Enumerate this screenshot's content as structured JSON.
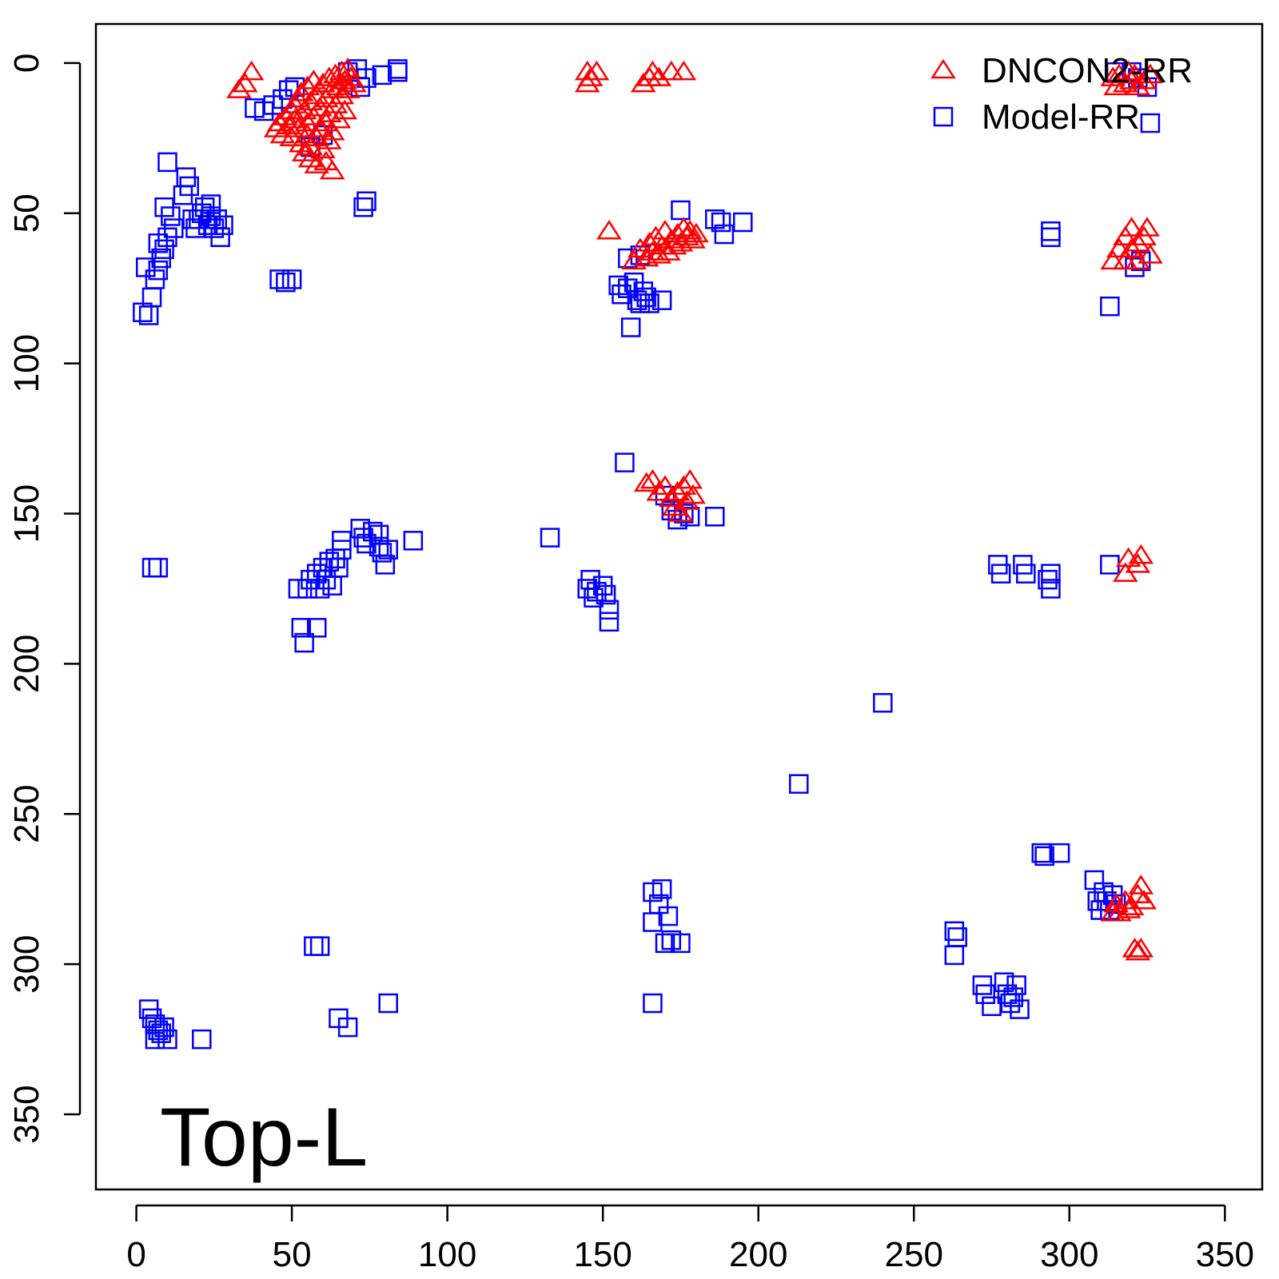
{
  "chart_data": {
    "type": "scatter",
    "title": "",
    "xlabel": "",
    "ylabel": "",
    "xlim": [
      -13,
      362
    ],
    "ylim": [
      -13,
      375
    ],
    "y_reversed": true,
    "x_ticks": [
      0,
      50,
      100,
      150,
      200,
      250,
      300,
      350
    ],
    "y_ticks": [
      0,
      50,
      100,
      150,
      200,
      250,
      300,
      350
    ],
    "x_tick_labels": [
      "0",
      "50",
      "100",
      "150",
      "200",
      "250",
      "300",
      "350"
    ],
    "y_tick_labels": [
      "0",
      "50",
      "100",
      "150",
      "200",
      "250",
      "300",
      "350"
    ],
    "grid": false,
    "legend": {
      "position": "top-right"
    },
    "annotation": "Top-L",
    "series": [
      {
        "name": "DNCON2-RR",
        "marker": "triangle",
        "color": "#ff0000",
        "points": [
          [
            33,
            9
          ],
          [
            35,
            7
          ],
          [
            37,
            3
          ],
          [
            45,
            22
          ],
          [
            46,
            20
          ],
          [
            47,
            24
          ],
          [
            48,
            18
          ],
          [
            49,
            21
          ],
          [
            50,
            16
          ],
          [
            50,
            25
          ],
          [
            51,
            14
          ],
          [
            51,
            19
          ],
          [
            52,
            12
          ],
          [
            52,
            22
          ],
          [
            53,
            27
          ],
          [
            53,
            10
          ],
          [
            54,
            16
          ],
          [
            54,
            30
          ],
          [
            55,
            8
          ],
          [
            55,
            20
          ],
          [
            55,
            24
          ],
          [
            56,
            13
          ],
          [
            56,
            28
          ],
          [
            56,
            32
          ],
          [
            57,
            6
          ],
          [
            57,
            18
          ],
          [
            58,
            11
          ],
          [
            58,
            25
          ],
          [
            58,
            34
          ],
          [
            59,
            15
          ],
          [
            59,
            22
          ],
          [
            60,
            7
          ],
          [
            60,
            29
          ],
          [
            61,
            12
          ],
          [
            61,
            20
          ],
          [
            61,
            33
          ],
          [
            62,
            5
          ],
          [
            62,
            17
          ],
          [
            62,
            26
          ],
          [
            63,
            9
          ],
          [
            63,
            23
          ],
          [
            63,
            36
          ],
          [
            64,
            4
          ],
          [
            64,
            14
          ],
          [
            65,
            8
          ],
          [
            65,
            19
          ],
          [
            66,
            3
          ],
          [
            66,
            11
          ],
          [
            67,
            6
          ],
          [
            67,
            16
          ],
          [
            68,
            2
          ],
          [
            68,
            9
          ],
          [
            69,
            5
          ],
          [
            70,
            7
          ],
          [
            145,
            3
          ],
          [
            145,
            7
          ],
          [
            146,
            5
          ],
          [
            148,
            3
          ],
          [
            163,
            7
          ],
          [
            165,
            5
          ],
          [
            166,
            3
          ],
          [
            168,
            5
          ],
          [
            172,
            3
          ],
          [
            176,
            3
          ],
          [
            152,
            56
          ],
          [
            160,
            66
          ],
          [
            162,
            62
          ],
          [
            164,
            65
          ],
          [
            165,
            60
          ],
          [
            166,
            63
          ],
          [
            167,
            58
          ],
          [
            168,
            64
          ],
          [
            169,
            61
          ],
          [
            170,
            56
          ],
          [
            171,
            63
          ],
          [
            172,
            59
          ],
          [
            173,
            61
          ],
          [
            174,
            57
          ],
          [
            175,
            60
          ],
          [
            176,
            55
          ],
          [
            177,
            58
          ],
          [
            178,
            56
          ],
          [
            179,
            59
          ],
          [
            180,
            57
          ],
          [
            164,
            140
          ],
          [
            166,
            139
          ],
          [
            168,
            143
          ],
          [
            170,
            141
          ],
          [
            172,
            145
          ],
          [
            173,
            148
          ],
          [
            174,
            143
          ],
          [
            175,
            150
          ],
          [
            176,
            141
          ],
          [
            177,
            146
          ],
          [
            178,
            139
          ],
          [
            179,
            144
          ],
          [
            314,
            5
          ],
          [
            315,
            8
          ],
          [
            316,
            4
          ],
          [
            318,
            7
          ],
          [
            319,
            3
          ],
          [
            320,
            6
          ],
          [
            321,
            4
          ],
          [
            322,
            8
          ],
          [
            324,
            6
          ],
          [
            326,
            4
          ],
          [
            314,
            66
          ],
          [
            316,
            62
          ],
          [
            318,
            58
          ],
          [
            318,
            66
          ],
          [
            320,
            55
          ],
          [
            320,
            62
          ],
          [
            322,
            60
          ],
          [
            322,
            66
          ],
          [
            324,
            58
          ],
          [
            325,
            55
          ],
          [
            326,
            64
          ],
          [
            318,
            170
          ],
          [
            319,
            165
          ],
          [
            322,
            167
          ],
          [
            323,
            164
          ],
          [
            314,
            283
          ],
          [
            315,
            280
          ],
          [
            316,
            283
          ],
          [
            318,
            279
          ],
          [
            319,
            282
          ],
          [
            320,
            281
          ],
          [
            322,
            277
          ],
          [
            323,
            274
          ],
          [
            324,
            279
          ],
          [
            321,
            295
          ],
          [
            322,
            296
          ],
          [
            323,
            295
          ]
        ]
      },
      {
        "name": "Model-RR",
        "marker": "square",
        "color": "#0000ff",
        "points": [
          [
            38,
            15
          ],
          [
            41,
            16
          ],
          [
            44,
            14
          ],
          [
            47,
            12
          ],
          [
            49,
            9
          ],
          [
            51,
            8
          ],
          [
            56,
            28
          ],
          [
            60,
            24
          ],
          [
            68,
            3
          ],
          [
            71,
            2
          ],
          [
            72,
            8
          ],
          [
            74,
            5
          ],
          [
            79,
            4
          ],
          [
            84,
            2
          ],
          [
            84,
            3
          ],
          [
            10,
            33
          ],
          [
            15,
            44
          ],
          [
            16,
            38
          ],
          [
            17,
            41
          ],
          [
            18,
            52
          ],
          [
            19,
            55
          ],
          [
            20,
            52
          ],
          [
            21,
            50
          ],
          [
            22,
            48
          ],
          [
            23,
            54
          ],
          [
            24,
            47
          ],
          [
            24,
            51
          ],
          [
            25,
            55
          ],
          [
            26,
            52
          ],
          [
            27,
            58
          ],
          [
            28,
            54
          ],
          [
            11,
            51
          ],
          [
            12,
            55
          ],
          [
            10,
            58
          ],
          [
            9,
            62
          ],
          [
            8,
            65
          ],
          [
            7,
            69
          ],
          [
            6,
            72
          ],
          [
            5,
            78
          ],
          [
            3,
            68
          ],
          [
            2,
            83
          ],
          [
            4,
            84
          ],
          [
            7,
            60
          ],
          [
            9,
            48
          ],
          [
            73,
            48
          ],
          [
            74,
            46
          ],
          [
            46,
            72
          ],
          [
            48,
            73
          ],
          [
            50,
            72
          ],
          [
            175,
            49
          ],
          [
            158,
            65
          ],
          [
            162,
            64
          ],
          [
            155,
            74
          ],
          [
            156,
            77
          ],
          [
            158,
            75
          ],
          [
            160,
            73
          ],
          [
            161,
            79
          ],
          [
            162,
            80
          ],
          [
            163,
            76
          ],
          [
            164,
            78
          ],
          [
            165,
            80
          ],
          [
            169,
            79
          ],
          [
            159,
            88
          ],
          [
            186,
            52
          ],
          [
            188,
            53
          ],
          [
            189,
            57
          ],
          [
            195,
            53
          ],
          [
            157,
            133
          ],
          [
            170,
            144
          ],
          [
            172,
            149
          ],
          [
            174,
            152
          ],
          [
            176,
            150
          ],
          [
            178,
            151
          ],
          [
            186,
            151
          ],
          [
            133,
            158
          ],
          [
            5,
            168
          ],
          [
            7,
            168
          ],
          [
            52,
            175
          ],
          [
            55,
            175
          ],
          [
            56,
            172
          ],
          [
            58,
            170
          ],
          [
            59,
            175
          ],
          [
            60,
            168
          ],
          [
            61,
            172
          ],
          [
            62,
            166
          ],
          [
            63,
            174
          ],
          [
            64,
            165
          ],
          [
            65,
            168
          ],
          [
            66,
            162
          ],
          [
            66,
            159
          ],
          [
            72,
            155
          ],
          [
            73,
            158
          ],
          [
            74,
            160
          ],
          [
            76,
            156
          ],
          [
            78,
            157
          ],
          [
            78,
            161
          ],
          [
            79,
            163
          ],
          [
            80,
            167
          ],
          [
            81,
            162
          ],
          [
            89,
            159
          ],
          [
            53,
            188
          ],
          [
            54,
            193
          ],
          [
            58,
            188
          ],
          [
            145,
            175
          ],
          [
            146,
            172
          ],
          [
            147,
            178
          ],
          [
            148,
            176
          ],
          [
            150,
            174
          ],
          [
            151,
            177
          ],
          [
            152,
            186
          ],
          [
            152,
            182
          ],
          [
            240,
            213
          ],
          [
            213,
            240
          ],
          [
            277,
            167
          ],
          [
            278,
            170
          ],
          [
            285,
            167
          ],
          [
            286,
            170
          ],
          [
            293,
            172
          ],
          [
            294,
            175
          ],
          [
            294,
            170
          ],
          [
            294,
            56
          ],
          [
            294,
            58
          ],
          [
            313,
            81
          ],
          [
            313,
            167
          ],
          [
            315,
            3
          ],
          [
            320,
            3
          ],
          [
            322,
            5
          ],
          [
            325,
            8
          ],
          [
            326,
            20
          ],
          [
            321,
            68
          ],
          [
            323,
            66
          ],
          [
            291,
            263
          ],
          [
            292,
            264
          ],
          [
            297,
            263
          ],
          [
            308,
            272
          ],
          [
            309,
            279
          ],
          [
            310,
            282
          ],
          [
            311,
            276
          ],
          [
            312,
            279
          ],
          [
            313,
            282
          ],
          [
            314,
            277
          ],
          [
            315,
            280
          ],
          [
            263,
            289
          ],
          [
            264,
            291
          ],
          [
            263,
            297
          ],
          [
            272,
            307
          ],
          [
            273,
            310
          ],
          [
            275,
            314
          ],
          [
            279,
            306
          ],
          [
            280,
            310
          ],
          [
            281,
            313
          ],
          [
            282,
            311
          ],
          [
            283,
            307
          ],
          [
            284,
            315
          ],
          [
            166,
            276
          ],
          [
            168,
            280
          ],
          [
            166,
            286
          ],
          [
            169,
            275
          ],
          [
            171,
            284
          ],
          [
            170,
            293
          ],
          [
            172,
            292
          ],
          [
            175,
            293
          ],
          [
            166,
            313
          ],
          [
            57,
            294
          ],
          [
            59,
            294
          ],
          [
            4,
            315
          ],
          [
            5,
            318
          ],
          [
            6,
            320
          ],
          [
            7,
            322
          ],
          [
            8,
            323
          ],
          [
            9,
            321
          ],
          [
            10,
            325
          ],
          [
            6,
            325
          ],
          [
            21,
            325
          ],
          [
            65,
            318
          ],
          [
            68,
            321
          ],
          [
            81,
            313
          ]
        ]
      }
    ]
  }
}
